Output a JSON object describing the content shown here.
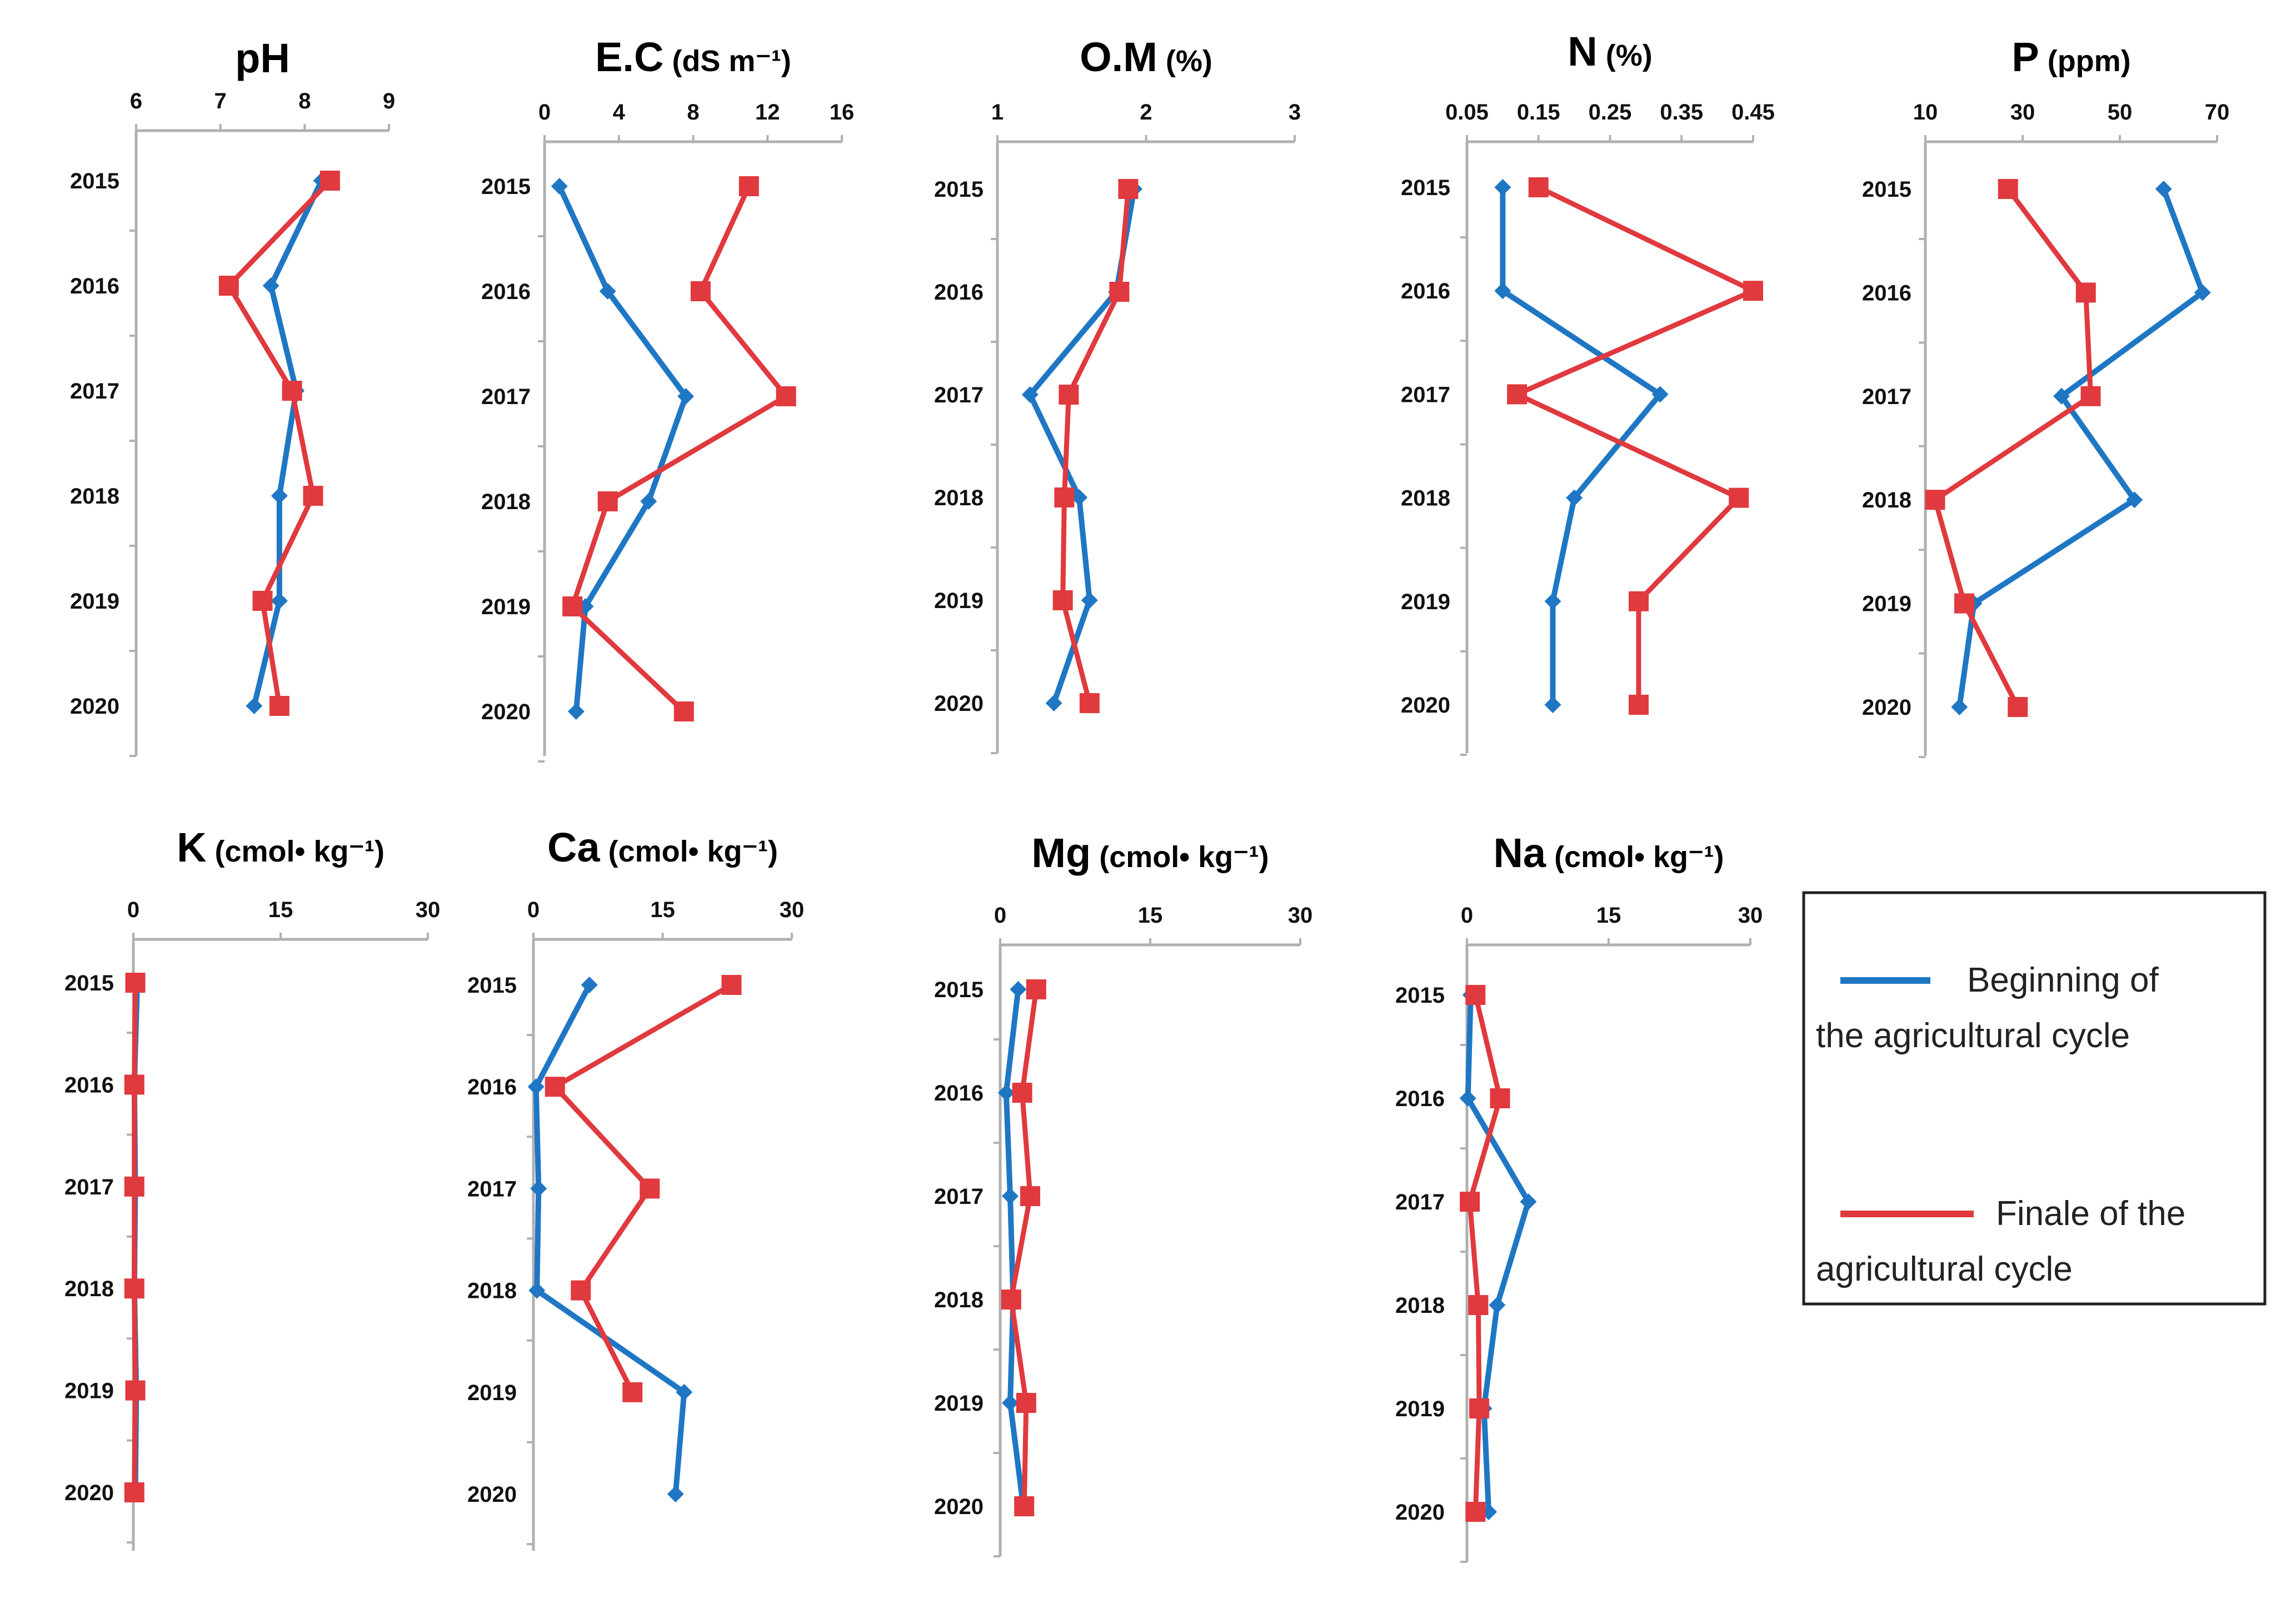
{
  "chart_data": [
    {
      "type": "line",
      "orientation": "vertical-category",
      "title": "pH",
      "unit": "",
      "categories": [
        "2015",
        "2016",
        "2017",
        "2018",
        "2019",
        "2020"
      ],
      "xlim": [
        6,
        9
      ],
      "ticks": [
        "6",
        "7",
        "8",
        "9"
      ],
      "series": [
        {
          "name": "Beginning of the agricultural cycle",
          "values": [
            8.2,
            7.6,
            7.9,
            7.7,
            7.7,
            7.4
          ]
        },
        {
          "name": "Finale of the agricultural cycle",
          "values": [
            8.3,
            7.1,
            7.85,
            8.1,
            7.5,
            7.7
          ]
        }
      ]
    },
    {
      "type": "line",
      "orientation": "vertical-category",
      "title": "E.C",
      "unit": "(dS m⁻¹)",
      "categories": [
        "2015",
        "2016",
        "2017",
        "2018",
        "2019",
        "2020"
      ],
      "xlim": [
        0,
        16
      ],
      "ticks": [
        "0",
        "4",
        "8",
        "12",
        "16"
      ],
      "series": [
        {
          "name": "Beginning of the agricultural cycle",
          "values": [
            0.8,
            3.4,
            7.6,
            5.6,
            2.2,
            1.7
          ]
        },
        {
          "name": "Finale of the agricultural cycle",
          "values": [
            11.0,
            8.4,
            13.0,
            3.4,
            1.5,
            7.5
          ]
        }
      ]
    },
    {
      "type": "line",
      "orientation": "vertical-category",
      "title": "O.M",
      "unit": "(%)",
      "categories": [
        "2015",
        "2016",
        "2017",
        "2018",
        "2019",
        "2020"
      ],
      "xlim": [
        1,
        3
      ],
      "ticks": [
        "1",
        "2",
        "3"
      ],
      "series": [
        {
          "name": "Beginning of the agricultural cycle",
          "values": [
            1.92,
            1.8,
            1.22,
            1.55,
            1.62,
            1.38
          ]
        },
        {
          "name": "Finale of the agricultural cycle",
          "values": [
            1.88,
            1.82,
            1.48,
            1.45,
            1.44,
            1.62
          ]
        }
      ]
    },
    {
      "type": "line",
      "orientation": "vertical-category",
      "title": "N",
      "unit": "(%)",
      "categories": [
        "2015",
        "2016",
        "2017",
        "2018",
        "2019",
        "2020"
      ],
      "xlim": [
        0.05,
        0.45
      ],
      "ticks": [
        "0.05",
        "0.15",
        "0.25",
        "0.35",
        "0.45"
      ],
      "series": [
        {
          "name": "Beginning of the agricultural cycle",
          "values": [
            0.1,
            0.1,
            0.32,
            0.2,
            0.17,
            0.17
          ]
        },
        {
          "name": "Finale of the agricultural cycle",
          "values": [
            0.15,
            0.45,
            0.12,
            0.43,
            0.29,
            0.29
          ]
        }
      ]
    },
    {
      "type": "line",
      "orientation": "vertical-category",
      "title": "P",
      "unit": "(ppm)",
      "categories": [
        "2015",
        "2016",
        "2017",
        "2018",
        "2019",
        "2020"
      ],
      "xlim": [
        10,
        70
      ],
      "ticks": [
        "10",
        "30",
        "50",
        "70"
      ],
      "series": [
        {
          "name": "Beginning of the agricultural cycle",
          "values": [
            59,
            67,
            38,
            53,
            20,
            17
          ]
        },
        {
          "name": "Finale of the agricultural cycle",
          "values": [
            27,
            43,
            44,
            12,
            18,
            29
          ]
        }
      ]
    },
    {
      "type": "line",
      "orientation": "vertical-category",
      "title": "K",
      "unit": "(cmol• kg⁻¹)",
      "categories": [
        "2015",
        "2016",
        "2017",
        "2018",
        "2019",
        "2020"
      ],
      "xlim": [
        0,
        30
      ],
      "ticks": [
        "0",
        "15",
        "30"
      ],
      "series": [
        {
          "name": "Beginning of the agricultural cycle",
          "values": [
            0.4,
            0.1,
            0.2,
            0.1,
            0.3,
            0.2
          ]
        },
        {
          "name": "Finale of the agricultural cycle",
          "values": [
            0.2,
            0.1,
            0.1,
            0.1,
            0.2,
            0.1
          ]
        }
      ]
    },
    {
      "type": "line",
      "orientation": "vertical-category",
      "title": "Ca",
      "unit": "(cmol• kg⁻¹)",
      "categories": [
        "2015",
        "2016",
        "2017",
        "2018",
        "2019",
        "2020"
      ],
      "xlim": [
        0,
        30
      ],
      "ticks": [
        "0",
        "15",
        "30"
      ],
      "series": [
        {
          "name": "Beginning of the agricultural cycle",
          "values": [
            6.5,
            0.3,
            0.6,
            0.4,
            17.5,
            16.5
          ]
        },
        {
          "name": "Finale of the agricultural cycle",
          "values": [
            23,
            2.5,
            13.5,
            5.5,
            11.5,
            null
          ]
        }
      ]
    },
    {
      "type": "line",
      "orientation": "vertical-category",
      "title": "Mg",
      "unit": "(cmol• kg⁻¹)",
      "categories": [
        "2015",
        "2016",
        "2017",
        "2018",
        "2019",
        "2020"
      ],
      "xlim": [
        0,
        30
      ],
      "ticks": [
        "0",
        "15",
        "30"
      ],
      "series": [
        {
          "name": "Beginning of the agricultural cycle",
          "values": [
            1.8,
            0.6,
            1.0,
            1.3,
            1.0,
            2.3
          ]
        },
        {
          "name": "Finale of the agricultural cycle",
          "values": [
            3.6,
            2.2,
            3.0,
            1.1,
            2.6,
            2.4
          ]
        }
      ]
    },
    {
      "type": "line",
      "orientation": "vertical-category",
      "title": "Na",
      "unit": "(cmol• kg⁻¹)",
      "categories": [
        "2015",
        "2016",
        "2017",
        "2018",
        "2019",
        "2020"
      ],
      "xlim": [
        0,
        30
      ],
      "ticks": [
        "0",
        "15",
        "30"
      ],
      "series": [
        {
          "name": "Beginning of the agricultural cycle",
          "values": [
            0.4,
            0.1,
            6.5,
            3.2,
            1.8,
            2.3
          ]
        },
        {
          "name": "Finale of the agricultural cycle",
          "values": [
            0.9,
            3.5,
            0.3,
            1.2,
            1.3,
            0.9
          ]
        }
      ]
    }
  ],
  "legend": {
    "items": [
      {
        "label": "Beginning   of the agricultural cycle",
        "color": "#1f77c4"
      },
      {
        "label": "Finale of the agricultural cycle",
        "color": "#e0393e"
      }
    ]
  },
  "colors": {
    "begin": "#1f77c4",
    "finale": "#e0393e"
  }
}
